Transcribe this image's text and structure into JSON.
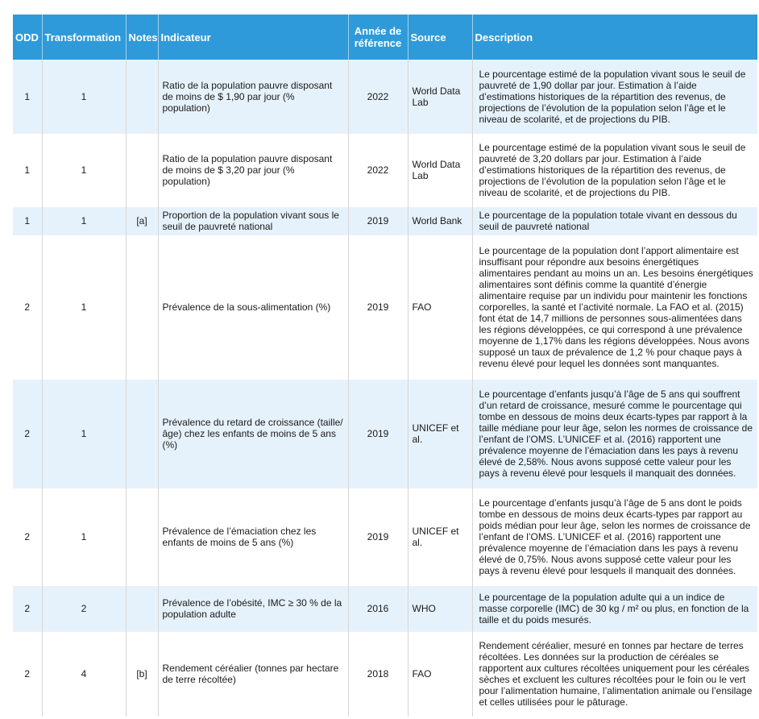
{
  "headers": {
    "odd": "ODD",
    "transformation": "Transformation",
    "notes": "Notes",
    "indicateur": "Indicateur",
    "annee": "Année de référence",
    "source": "Source",
    "description": "Description"
  },
  "rows": [
    {
      "odd": "1",
      "transformation": "1",
      "notes": "",
      "indicateur": "Ratio de la population pauvre disposant de moins de $ 1,90 par jour (% population)",
      "annee": "2022",
      "source": "World Data Lab",
      "description": "Le pourcentage estimé de la population vivant sous le seuil de pauvreté de 1,90 dollar par jour. Estimation à l’aide d’estimations historiques de la répartition des revenus, de projections de l’évolution de la population selon l’âge et le niveau de scolarité, et de projections du PIB."
    },
    {
      "odd": "1",
      "transformation": "1",
      "notes": "",
      "indicateur": "Ratio de la population pauvre disposant de moins de $ 3,20 par jour (% population)",
      "annee": "2022",
      "source": "World Data Lab",
      "description": "Le pourcentage estimé de la population vivant sous le seuil de pauvreté de 3,20 dollars par jour. Estimation à l’aide d’estimations historiques de la répartition des revenus, de projections de l’évolution de la population selon l’âge et le niveau de scolarité, et de projections du PIB."
    },
    {
      "odd": "1",
      "transformation": "1",
      "notes": "[a]",
      "indicateur": "Proportion de la population vivant sous le seuil de pauvreté national",
      "annee": "2019",
      "source": "World Bank",
      "description": "Le pourcentage de la population totale vivant en dessous du seuil de pauvreté national"
    },
    {
      "odd": "2",
      "transformation": "1",
      "notes": "",
      "indicateur": "Prévalence de la sous-alimentation (%)",
      "annee": "2019",
      "source": "FAO",
      "description": "Le pourcentage de la population dont l’apport alimentaire est insuffisant pour répondre aux besoins énergétiques alimentaires pendant au moins un an. Les besoins énergétiques alimentaires sont définis comme la quantité d’énergie alimentaire requise par un individu pour maintenir les fonctions corporelles, la santé et l’activité normale. La FAO et al. (2015) font état de 14,7 millions de personnes sous-alimentées dans les régions développées, ce qui correspond à une prévalence moyenne de 1,17% dans les régions développées. Nous avons supposé un taux de prévalence de 1,2 % pour chaque pays à revenu élevé pour lequel les données sont manquantes."
    },
    {
      "odd": "2",
      "transformation": "1",
      "notes": "",
      "indicateur": "Prévalence du retard de croissance (taille/âge) chez les enfants de moins de 5 ans (%)",
      "annee": "2019",
      "source": "UNICEF et al.",
      "description": "Le pourcentage d’enfants jusqu’à l’âge de 5 ans qui souffrent d’un retard de croissance, mesuré comme le pourcentage qui tombe en dessous de moins deux écarts-types par rapport à la taille médiane pour leur âge, selon les normes de croissance de l’enfant de l’OMS. L’UNICEF et al. (2016) rapportent une prévalence moyenne de l’émaciation dans les pays à revenu élevé de 2,58%. Nous avons supposé cette valeur pour les pays à revenu élevé pour lesquels il manquait des données."
    },
    {
      "odd": "2",
      "transformation": "1",
      "notes": "",
      "indicateur": "Prévalence de l’émaciation chez les enfants de moins de 5 ans (%)",
      "annee": "2019",
      "source": "UNICEF et al.",
      "description": "Le pourcentage d’enfants jusqu’à l’âge de 5 ans dont le poids tombe en dessous de moins deux écarts-types par rapport au poids médian pour leur âge, selon les normes de croissance de l’enfant de l’OMS. L’UNICEF et al. (2016) rapportent une prévalence moyenne de l’émaciation dans les pays à revenu élevé de 0,75%. Nous avons supposé cette valeur pour les pays à revenu élevé pour lesquels il manquait des données."
    },
    {
      "odd": "2",
      "transformation": "2",
      "notes": "",
      "indicateur": "Prévalence de l’obésité, IMC ≥ 30 % de la population adulte",
      "annee": "2016",
      "source": "WHO",
      "description": "Le pourcentage de la population adulte qui a un indice de masse corporelle (IMC) de 30 kg / m² ou plus, en fonction de la taille et du poids mesurés."
    },
    {
      "odd": "2",
      "transformation": "4",
      "notes": "[b]",
      "indicateur": "Rendement céréalier (tonnes par hectare de terre récoltée)",
      "annee": "2018",
      "source": "FAO",
      "description": "Rendement céréalier, mesuré en tonnes par hectare de terres récoltées. Les données sur la production de céréales se rapportent aux cultures récoltées uniquement pour les céréales sèches et excluent les cultures récoltées pour le foin ou le vert pour l’alimentation humaine, l’alimentation animale ou l’ensilage et celles utilisées pour le pâturage."
    }
  ]
}
